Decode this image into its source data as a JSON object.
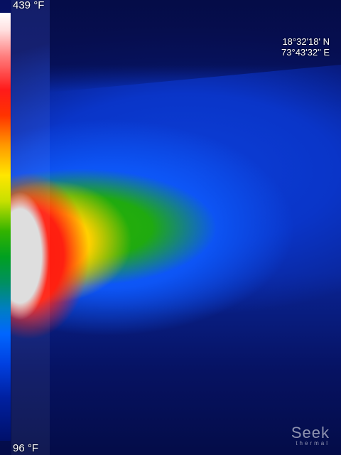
{
  "scale": {
    "max_temp": "439 °F",
    "min_temp": "96 °F",
    "colors": [
      "#ffffff",
      "#ff1a1a",
      "#ffe600",
      "#33b300",
      "#0066ff",
      "#00106a"
    ]
  },
  "location": {
    "latitude": "18°32'18' N",
    "longitude": "73°43'32\" E"
  },
  "brand": {
    "name": "Seek",
    "subtitle": "thermal"
  }
}
